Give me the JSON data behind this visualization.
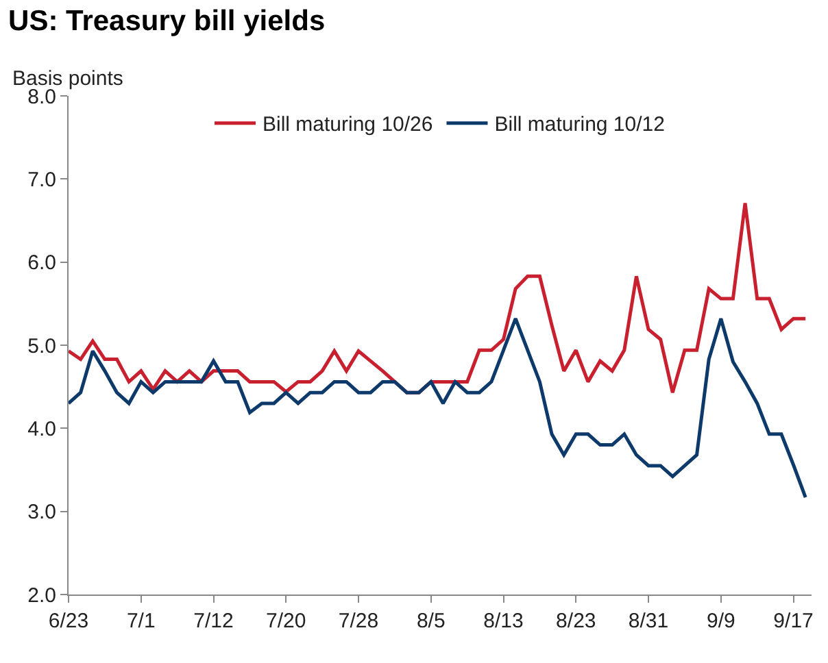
{
  "chart_data": {
    "type": "line",
    "title": "US: Treasury bill yields",
    "subtitle": "Basis points",
    "categories": [
      "6/23",
      null,
      null,
      null,
      null,
      null,
      "7/1",
      null,
      null,
      null,
      null,
      null,
      "7/12",
      null,
      null,
      null,
      null,
      null,
      "7/20",
      null,
      null,
      null,
      null,
      null,
      "7/28",
      null,
      null,
      null,
      null,
      null,
      "8/5",
      null,
      null,
      null,
      null,
      null,
      "8/13",
      null,
      null,
      null,
      null,
      null,
      "8/23",
      null,
      null,
      null,
      null,
      null,
      "8/31",
      null,
      null,
      null,
      null,
      null,
      "9/9",
      null,
      null,
      null,
      null,
      null,
      "9/17",
      null
    ],
    "series": [
      {
        "name": "Bill maturing 10/26",
        "color": "#c8202f",
        "values": [
          4.93,
          4.83,
          5.05,
          4.83,
          4.83,
          4.56,
          4.69,
          4.47,
          4.69,
          4.56,
          4.69,
          4.56,
          4.69,
          4.69,
          4.69,
          4.56,
          4.56,
          4.56,
          4.44,
          4.56,
          4.56,
          4.69,
          4.93,
          4.69,
          4.93,
          4.81,
          4.69,
          4.56,
          4.43,
          4.43,
          4.56,
          4.56,
          4.56,
          4.56,
          4.94,
          4.94,
          5.07,
          5.68,
          5.83,
          5.83,
          5.24,
          4.69,
          4.94,
          4.56,
          4.81,
          4.69,
          4.94,
          5.83,
          5.19,
          5.07,
          4.43,
          4.94,
          4.94,
          5.68,
          5.56,
          5.56,
          6.71,
          5.56,
          5.56,
          5.19,
          5.32,
          5.32
        ]
      },
      {
        "name": "Bill maturing 10/12",
        "color": "#0e3a6b",
        "values": [
          4.3,
          4.43,
          4.93,
          4.69,
          4.43,
          4.3,
          4.56,
          4.43,
          4.56,
          4.56,
          4.56,
          4.56,
          4.81,
          4.56,
          4.56,
          4.19,
          4.3,
          4.3,
          4.43,
          4.3,
          4.43,
          4.43,
          4.56,
          4.56,
          4.43,
          4.43,
          4.56,
          4.56,
          4.43,
          4.43,
          4.56,
          4.3,
          4.56,
          4.43,
          4.43,
          4.56,
          4.94,
          5.32,
          4.94,
          4.56,
          3.93,
          3.68,
          3.93,
          3.93,
          3.8,
          3.8,
          3.93,
          3.68,
          3.55,
          3.55,
          3.42,
          3.55,
          3.68,
          4.83,
          5.32,
          4.8,
          4.56,
          4.3,
          3.93,
          3.93,
          3.56,
          3.17
        ]
      }
    ],
    "ylim": [
      2.0,
      8.0
    ],
    "yticks": [
      {
        "value": 2,
        "label": "2.0"
      },
      {
        "value": 3,
        "label": "3.0"
      },
      {
        "value": 4,
        "label": "4.0"
      },
      {
        "value": 5,
        "label": "5.0"
      },
      {
        "value": 6,
        "label": "6.0"
      },
      {
        "value": 7,
        "label": "7.0"
      },
      {
        "value": 8,
        "label": "8.0"
      }
    ],
    "legend": "top",
    "marker": "none",
    "line_style": "solid"
  }
}
